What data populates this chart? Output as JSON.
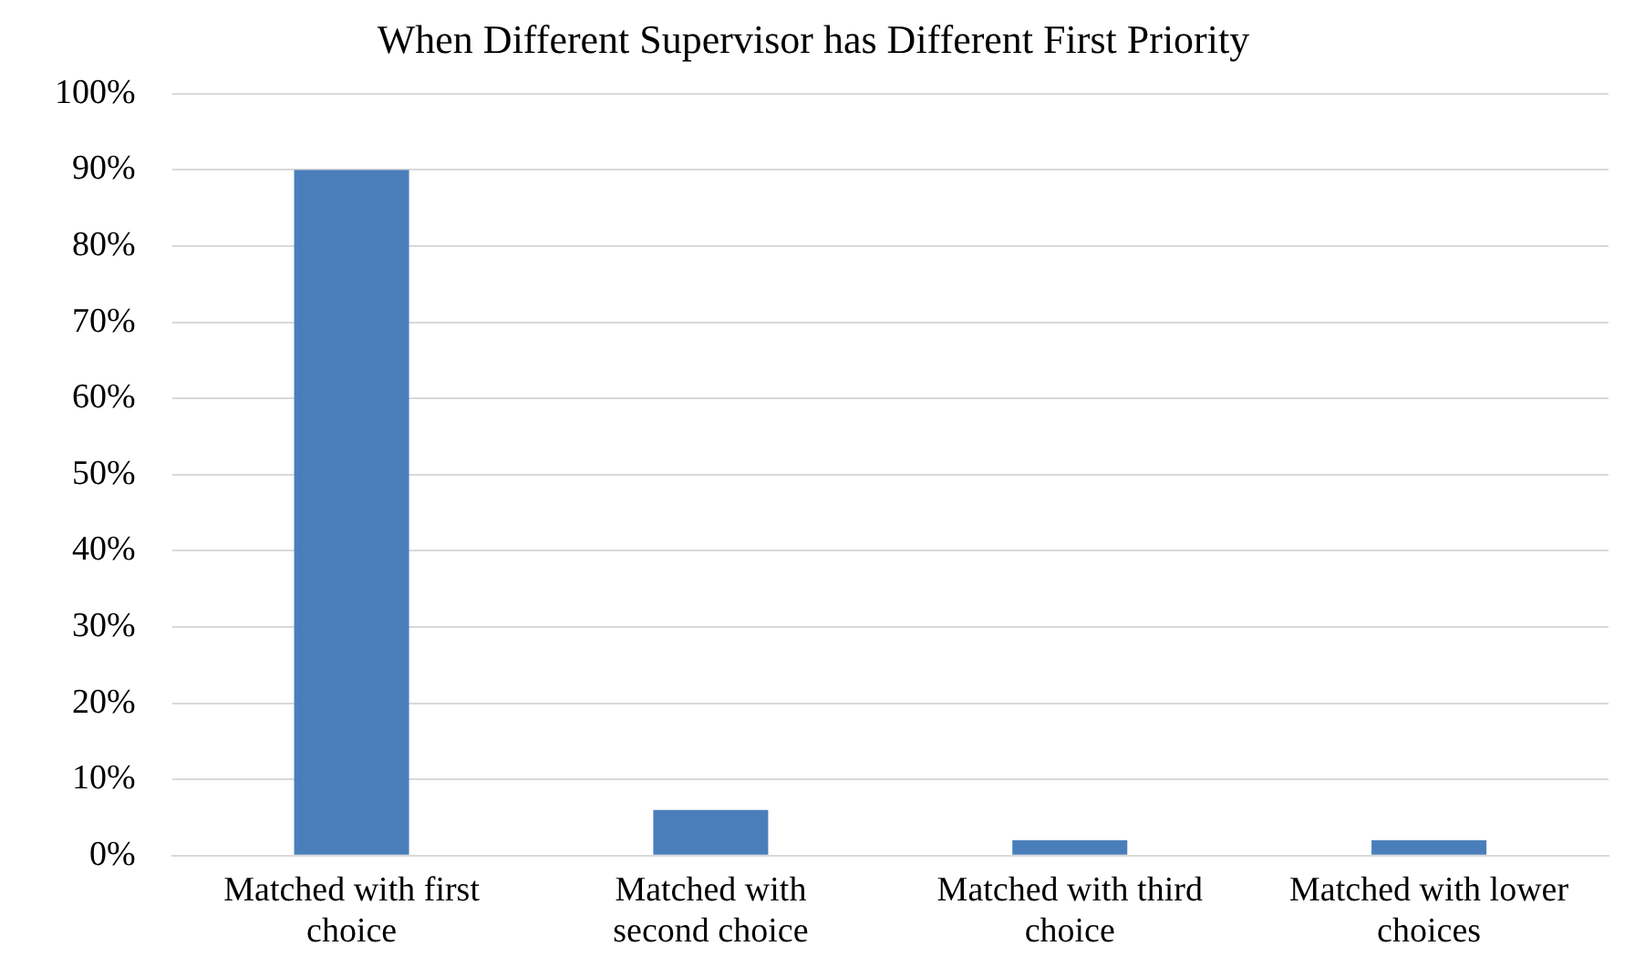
{
  "chart_data": {
    "type": "bar",
    "title": "When Different Supervisor has Different First Priority",
    "categories": [
      "Matched with first choice",
      "Matched with second choice",
      "Matched with third choice",
      "Matched with lower choices"
    ],
    "values": [
      90,
      6,
      2,
      2
    ],
    "color": "#4a7ebb",
    "ylim": [
      0,
      100
    ],
    "yticks": [
      {
        "value": 0,
        "label": "0%"
      },
      {
        "value": 10,
        "label": "10%"
      },
      {
        "value": 20,
        "label": "20%"
      },
      {
        "value": 30,
        "label": "30%"
      },
      {
        "value": 40,
        "label": "40%"
      },
      {
        "value": 50,
        "label": "50%"
      },
      {
        "value": 60,
        "label": "60%"
      },
      {
        "value": 70,
        "label": "70%"
      },
      {
        "value": 80,
        "label": "80%"
      },
      {
        "value": 90,
        "label": "90%"
      },
      {
        "value": 100,
        "label": "100%"
      }
    ],
    "grid": "y"
  }
}
